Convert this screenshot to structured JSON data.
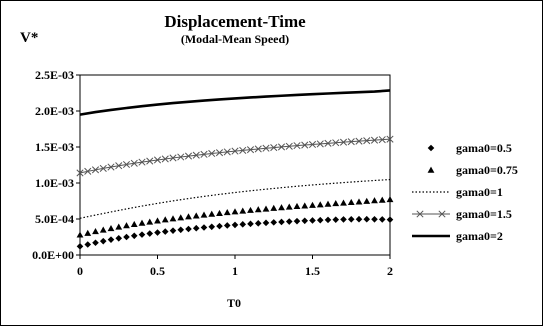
{
  "chart_data": {
    "type": "line",
    "title": "Displacement-Time",
    "subtitle": "(Modal-Mean Speed)",
    "xlabel": "T0",
    "ylabel": "V*",
    "xlim": [
      0,
      2
    ],
    "ylim": [
      0,
      0.0025
    ],
    "x_ticks": [
      "0",
      "0.5",
      "1",
      "1.5",
      "2"
    ],
    "y_ticks": [
      "0.0E+00",
      "5.0E-04",
      "1.0E-03",
      "1.5E-03",
      "2.0E-03",
      "2.5E-03"
    ],
    "grid": false,
    "legend_position": "right",
    "series": [
      {
        "name": "gama0=0.5",
        "marker": "diamond",
        "line": "none",
        "color": "#000000",
        "x": [
          0.0,
          0.05,
          0.1,
          0.15,
          0.2,
          0.25,
          0.3,
          0.35,
          0.4,
          0.45,
          0.5,
          0.55,
          0.6,
          0.65,
          0.7,
          0.75,
          0.8,
          0.85,
          0.9,
          0.95,
          1.0,
          1.05,
          1.1,
          1.15,
          1.2,
          1.25,
          1.3,
          1.35,
          1.4,
          1.45,
          1.5,
          1.55,
          1.6,
          1.65,
          1.7,
          1.75,
          1.8,
          1.85,
          1.9,
          1.95,
          2.0
        ],
        "y": [
          0.00012,
          0.000146,
          0.00017,
          0.000192,
          0.000213,
          0.000232,
          0.00025,
          0.000267,
          0.000283,
          0.000298,
          0.000312,
          0.000325,
          0.000338,
          0.00035,
          0.000361,
          0.000372,
          0.000382,
          0.000392,
          0.000401,
          0.00041,
          0.000418,
          0.000426,
          0.000433,
          0.00044,
          0.000447,
          0.000453,
          0.000459,
          0.000465,
          0.00047,
          0.000475,
          0.00048,
          0.000484,
          0.000488,
          0.000491,
          0.000494,
          0.000496,
          0.000497,
          0.000497,
          0.000496,
          0.000494,
          0.000491
        ]
      },
      {
        "name": "gama0=0.75",
        "marker": "triangle",
        "line": "none",
        "color": "#000000",
        "x": [
          0.0,
          0.05,
          0.1,
          0.15,
          0.2,
          0.25,
          0.3,
          0.35,
          0.4,
          0.45,
          0.5,
          0.55,
          0.6,
          0.65,
          0.7,
          0.75,
          0.8,
          0.85,
          0.9,
          0.95,
          1.0,
          1.05,
          1.1,
          1.15,
          1.2,
          1.25,
          1.3,
          1.35,
          1.4,
          1.45,
          1.5,
          1.55,
          1.6,
          1.65,
          1.7,
          1.75,
          1.8,
          1.85,
          1.9,
          1.95,
          2.0
        ],
        "y": [
          0.00028,
          0.000304,
          0.000327,
          0.000349,
          0.00037,
          0.00039,
          0.000409,
          0.000427,
          0.000444,
          0.00046,
          0.000476,
          0.000491,
          0.000505,
          0.000519,
          0.000532,
          0.000545,
          0.000557,
          0.000569,
          0.00058,
          0.000591,
          0.000602,
          0.000612,
          0.000622,
          0.000632,
          0.000641,
          0.00065,
          0.000659,
          0.000668,
          0.000676,
          0.000684,
          0.000692,
          0.0007,
          0.000708,
          0.000716,
          0.000724,
          0.000732,
          0.00074,
          0.000748,
          0.000756,
          0.000764,
          0.000772
        ]
      },
      {
        "name": "gama0=1",
        "marker": "none",
        "line": "dotted",
        "color": "#000000",
        "x": [
          0.0,
          0.1,
          0.2,
          0.3,
          0.4,
          0.5,
          0.6,
          0.7,
          0.8,
          0.9,
          1.0,
          1.1,
          1.2,
          1.3,
          1.4,
          1.5,
          1.6,
          1.7,
          1.8,
          1.9,
          2.0
        ],
        "y": [
          0.00051,
          0.000555,
          0.000598,
          0.00064,
          0.00068,
          0.000717,
          0.000752,
          0.000784,
          0.000814,
          0.000842,
          0.000868,
          0.000892,
          0.000914,
          0.000935,
          0.000955,
          0.000973,
          0.00099,
          0.001006,
          0.001021,
          0.001035,
          0.001048
        ]
      },
      {
        "name": "gama0=1.5",
        "marker": "x",
        "line": "solid",
        "color": "#555555",
        "x": [
          0.0,
          0.05,
          0.1,
          0.15,
          0.2,
          0.25,
          0.3,
          0.35,
          0.4,
          0.45,
          0.5,
          0.55,
          0.6,
          0.65,
          0.7,
          0.75,
          0.8,
          0.85,
          0.9,
          0.95,
          1.0,
          1.05,
          1.1,
          1.15,
          1.2,
          1.25,
          1.3,
          1.35,
          1.4,
          1.45,
          1.5,
          1.55,
          1.6,
          1.65,
          1.7,
          1.75,
          1.8,
          1.85,
          1.9,
          1.95,
          2.0
        ],
        "y": [
          0.00114,
          0.001162,
          0.001183,
          0.001203,
          0.001222,
          0.00124,
          0.001257,
          0.001274,
          0.00129,
          0.001305,
          0.00132,
          0.001334,
          0.001348,
          0.001361,
          0.001374,
          0.001386,
          0.001398,
          0.00141,
          0.001421,
          0.001432,
          0.001443,
          0.001453,
          0.001463,
          0.001473,
          0.001483,
          0.001492,
          0.001501,
          0.00151,
          0.001519,
          0.001527,
          0.001535,
          0.001543,
          0.001551,
          0.001559,
          0.001567,
          0.001574,
          0.001581,
          0.001588,
          0.001595,
          0.001602,
          0.001609
        ]
      },
      {
        "name": "gama0=2",
        "marker": "none",
        "line": "solid-thick",
        "color": "#000000",
        "x": [
          0.0,
          0.1,
          0.2,
          0.3,
          0.4,
          0.5,
          0.6,
          0.7,
          0.8,
          0.9,
          1.0,
          1.1,
          1.2,
          1.3,
          1.4,
          1.5,
          1.6,
          1.7,
          1.8,
          1.9,
          2.0
        ],
        "y": [
          0.00195,
          0.001985,
          0.002015,
          0.002042,
          0.002067,
          0.00209,
          0.00211,
          0.002128,
          0.002145,
          0.00216,
          0.002175,
          0.002188,
          0.0022,
          0.002212,
          0.002223,
          0.002233,
          0.002243,
          0.002252,
          0.002261,
          0.00227,
          0.002285
        ]
      }
    ]
  }
}
